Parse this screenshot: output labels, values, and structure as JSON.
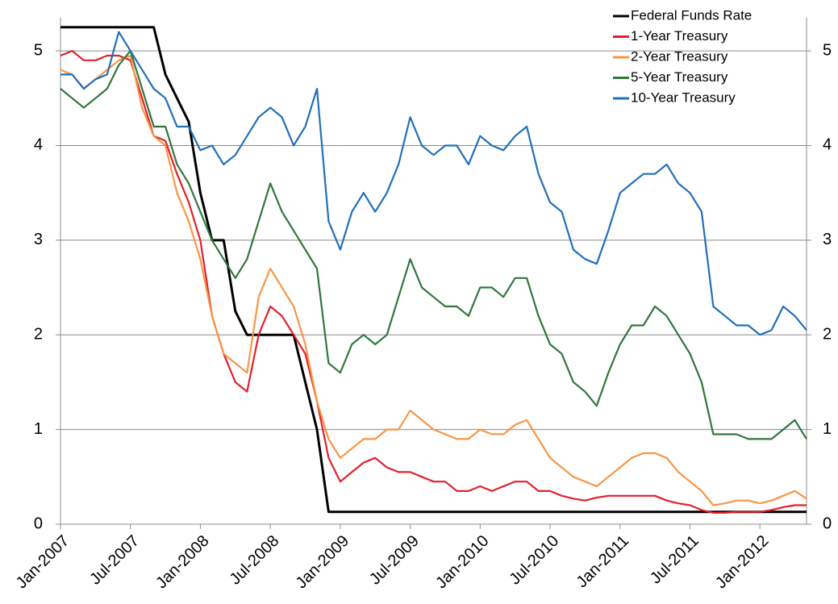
{
  "chart_data": {
    "type": "line",
    "x": [
      "Jan-2007",
      "Feb-2007",
      "Mar-2007",
      "Apr-2007",
      "May-2007",
      "Jun-2007",
      "Jul-2007",
      "Aug-2007",
      "Sep-2007",
      "Oct-2007",
      "Nov-2007",
      "Dec-2007",
      "Jan-2008",
      "Feb-2008",
      "Mar-2008",
      "Apr-2008",
      "May-2008",
      "Jun-2008",
      "Jul-2008",
      "Aug-2008",
      "Sep-2008",
      "Oct-2008",
      "Nov-2008",
      "Dec-2008",
      "Jan-2009",
      "Feb-2009",
      "Mar-2009",
      "Apr-2009",
      "May-2009",
      "Jun-2009",
      "Jul-2009",
      "Aug-2009",
      "Sep-2009",
      "Oct-2009",
      "Nov-2009",
      "Dec-2009",
      "Jan-2010",
      "Feb-2010",
      "Mar-2010",
      "Apr-2010",
      "May-2010",
      "Jun-2010",
      "Jul-2010",
      "Aug-2010",
      "Sep-2010",
      "Oct-2010",
      "Nov-2010",
      "Dec-2010",
      "Jan-2011",
      "Feb-2011",
      "Mar-2011",
      "Apr-2011",
      "May-2011",
      "Jun-2011",
      "Jul-2011",
      "Aug-2011",
      "Sep-2011",
      "Oct-2011",
      "Nov-2011",
      "Dec-2011",
      "Jan-2012",
      "Feb-2012",
      "Mar-2012",
      "Apr-2012",
      "May-2012"
    ],
    "xticks": [
      "Jan-2007",
      "Jul-2007",
      "Jan-2008",
      "Jul-2008",
      "Jan-2009",
      "Jul-2009",
      "Jan-2010",
      "Jul-2010",
      "Jan-2011",
      "Jul-2011",
      "Jan-2012"
    ],
    "ylim": [
      0,
      5.35
    ],
    "yticks": [
      0,
      1,
      2,
      3,
      4,
      5
    ],
    "grid": true,
    "legend": "top-right",
    "series": [
      {
        "name": "Federal Funds Rate",
        "color": "#000000",
        "values": [
          5.25,
          5.25,
          5.25,
          5.25,
          5.25,
          5.25,
          5.25,
          5.25,
          5.25,
          4.75,
          4.5,
          4.25,
          3.5,
          3.0,
          3.0,
          2.25,
          2.0,
          2.0,
          2.0,
          2.0,
          2.0,
          1.5,
          1.0,
          0.13,
          0.13,
          0.13,
          0.13,
          0.13,
          0.13,
          0.13,
          0.13,
          0.13,
          0.13,
          0.13,
          0.13,
          0.13,
          0.13,
          0.13,
          0.13,
          0.13,
          0.13,
          0.13,
          0.13,
          0.13,
          0.13,
          0.13,
          0.13,
          0.13,
          0.13,
          0.13,
          0.13,
          0.13,
          0.13,
          0.13,
          0.13,
          0.13,
          0.13,
          0.13,
          0.13,
          0.13,
          0.13,
          0.13,
          0.13,
          0.13,
          0.13
        ]
      },
      {
        "name": "1-Year Treasury",
        "color": "#e3202a",
        "values": [
          4.95,
          5.0,
          4.9,
          4.9,
          4.95,
          4.95,
          4.9,
          4.5,
          4.1,
          4.05,
          3.7,
          3.4,
          3.0,
          2.2,
          1.8,
          1.5,
          1.4,
          2.0,
          2.3,
          2.2,
          2.0,
          1.8,
          1.3,
          0.7,
          0.45,
          0.55,
          0.65,
          0.7,
          0.6,
          0.55,
          0.55,
          0.5,
          0.45,
          0.45,
          0.35,
          0.35,
          0.4,
          0.35,
          0.4,
          0.45,
          0.45,
          0.35,
          0.35,
          0.3,
          0.27,
          0.25,
          0.28,
          0.3,
          0.3,
          0.3,
          0.3,
          0.3,
          0.25,
          0.22,
          0.2,
          0.15,
          0.12,
          0.12,
          0.13,
          0.13,
          0.13,
          0.15,
          0.18,
          0.2,
          0.2
        ]
      },
      {
        "name": "2-Year Treasury",
        "color": "#f79646",
        "values": [
          4.8,
          4.75,
          4.6,
          4.7,
          4.8,
          4.9,
          4.95,
          4.4,
          4.1,
          4.0,
          3.5,
          3.2,
          2.8,
          2.2,
          1.8,
          1.7,
          1.6,
          2.4,
          2.7,
          2.5,
          2.3,
          1.9,
          1.3,
          0.9,
          0.7,
          0.8,
          0.9,
          0.9,
          1.0,
          1.0,
          1.2,
          1.1,
          1.0,
          0.95,
          0.9,
          0.9,
          1.0,
          0.95,
          0.95,
          1.05,
          1.1,
          0.9,
          0.7,
          0.6,
          0.5,
          0.45,
          0.4,
          0.5,
          0.6,
          0.7,
          0.75,
          0.75,
          0.7,
          0.55,
          0.45,
          0.35,
          0.2,
          0.22,
          0.25,
          0.25,
          0.22,
          0.25,
          0.3,
          0.35,
          0.27
        ]
      },
      {
        "name": "5-Year Treasury",
        "color": "#31773d",
        "values": [
          4.6,
          4.5,
          4.4,
          4.5,
          4.6,
          4.85,
          5.0,
          4.6,
          4.2,
          4.2,
          3.8,
          3.6,
          3.3,
          3.0,
          2.8,
          2.6,
          2.8,
          3.2,
          3.6,
          3.3,
          3.1,
          2.9,
          2.7,
          1.7,
          1.6,
          1.9,
          2.0,
          1.9,
          2.0,
          2.4,
          2.8,
          2.5,
          2.4,
          2.3,
          2.3,
          2.2,
          2.5,
          2.5,
          2.4,
          2.6,
          2.6,
          2.2,
          1.9,
          1.8,
          1.5,
          1.4,
          1.25,
          1.6,
          1.9,
          2.1,
          2.1,
          2.3,
          2.2,
          2.0,
          1.8,
          1.5,
          0.95,
          0.95,
          0.95,
          0.9,
          0.9,
          0.9,
          1.0,
          1.1,
          0.9
        ]
      },
      {
        "name": "10-Year Treasury",
        "color": "#2170b8",
        "values": [
          4.75,
          4.75,
          4.6,
          4.7,
          4.75,
          5.2,
          5.0,
          4.8,
          4.6,
          4.5,
          4.2,
          4.2,
          3.95,
          4.0,
          3.8,
          3.9,
          4.1,
          4.3,
          4.4,
          4.3,
          4.0,
          4.2,
          4.6,
          3.2,
          2.9,
          3.3,
          3.5,
          3.3,
          3.5,
          3.8,
          4.3,
          4.0,
          3.9,
          4.0,
          4.0,
          3.8,
          4.1,
          4.0,
          3.95,
          4.1,
          4.2,
          3.7,
          3.4,
          3.3,
          2.9,
          2.8,
          2.75,
          3.1,
          3.5,
          3.6,
          3.7,
          3.7,
          3.8,
          3.6,
          3.5,
          3.3,
          2.3,
          2.2,
          2.1,
          2.1,
          2.0,
          2.05,
          2.3,
          2.2,
          2.05
        ]
      }
    ]
  }
}
